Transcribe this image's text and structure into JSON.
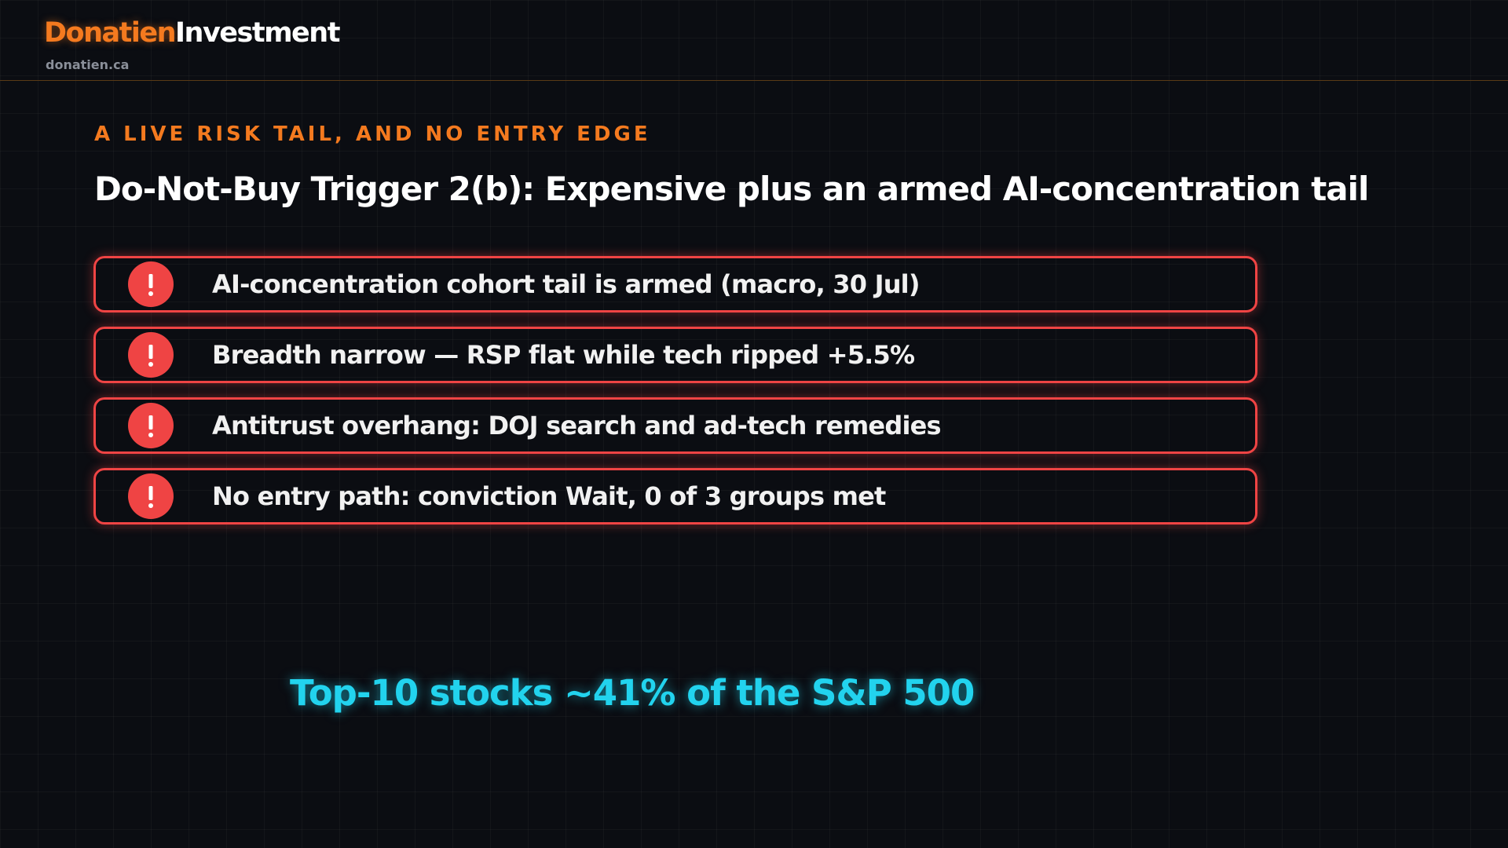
{
  "header": {
    "brand_first": "Donatien",
    "brand_second": "Investment",
    "site": "donatien.ca"
  },
  "slide": {
    "eyebrow": "A LIVE RISK TAIL, AND NO ENTRY EDGE",
    "title": "Do-Not-Buy Trigger 2(b): Expensive plus an armed AI-concentration tail",
    "items": [
      "AI-concentration cohort tail is armed (macro, 30 Jul)",
      "Breadth narrow — RSP flat while tech ripped +5.5%",
      "Antitrust overhang: DOJ search and ad-tech remedies",
      "No entry path: conviction Wait, 0 of 3 groups met"
    ],
    "callout": "Top-10 stocks ~41% of the S&P 500"
  }
}
